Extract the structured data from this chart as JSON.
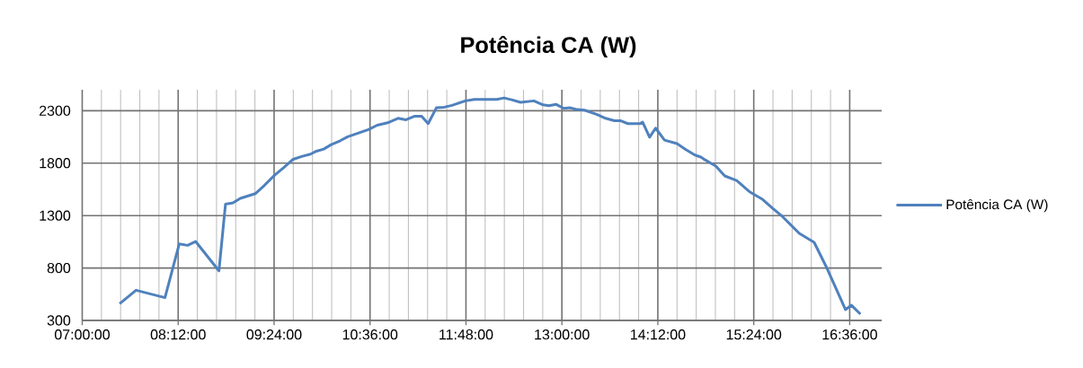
{
  "chart_data": {
    "type": "line",
    "title": "Potência CA (W)",
    "x": [
      7.468,
      7.673,
      8.035,
      8.214,
      8.318,
      8.418,
      8.71,
      8.792,
      8.885,
      8.978,
      9.164,
      9.276,
      9.407,
      9.519,
      9.638,
      9.743,
      9.855,
      9.929,
      10.02,
      10.115,
      10.227,
      10.32,
      10.45,
      10.58,
      10.69,
      10.82,
      10.95,
      11.05,
      11.16,
      11.245,
      11.327,
      11.43,
      11.53,
      11.625,
      11.793,
      11.905,
      12.185,
      12.277,
      12.37,
      12.483,
      12.65,
      12.763,
      12.837,
      12.93,
      13.023,
      13.105,
      13.172,
      13.284,
      13.434,
      13.546,
      13.657,
      13.73,
      13.825,
      13.974,
      14.01,
      14.097,
      14.172,
      14.284,
      14.44,
      14.552,
      14.664,
      14.738,
      14.776,
      14.925,
      15.037,
      15.186,
      15.354,
      15.503,
      15.633,
      15.764,
      15.969,
      16.155,
      16.304,
      16.547,
      16.622,
      16.734
    ],
    "series": [
      {
        "name": "Potência CA (W)",
        "color": "#4f81bd",
        "values": [
          460,
          588,
          517,
          1030,
          1016,
          1053,
          773,
          1409,
          1421,
          1464,
          1509,
          1586,
          1686,
          1757,
          1837,
          1863,
          1886,
          1914,
          1934,
          1977,
          2014,
          2051,
          2086,
          2120,
          2162,
          2185,
          2228,
          2214,
          2248,
          2248,
          2177,
          2328,
          2334,
          2351,
          2394,
          2408,
          2408,
          2422,
          2405,
          2380,
          2394,
          2356,
          2348,
          2360,
          2322,
          2328,
          2314,
          2305,
          2266,
          2228,
          2205,
          2205,
          2177,
          2177,
          2191,
          2048,
          2134,
          2020,
          1986,
          1928,
          1877,
          1858,
          1838,
          1772,
          1678,
          1635,
          1524,
          1458,
          1372,
          1287,
          1130,
          1045,
          816,
          403,
          445,
          360
        ]
      }
    ],
    "xlim": [
      7,
      17
    ],
    "ylim": [
      300,
      2500
    ],
    "xticks": [
      {
        "value": 7,
        "label": "07:00:00"
      },
      {
        "value": 8.2,
        "label": "08:12:00"
      },
      {
        "value": 9.4,
        "label": "09:24:00"
      },
      {
        "value": 10.6,
        "label": "10:36:00"
      },
      {
        "value": 11.8,
        "label": "11:48:00"
      },
      {
        "value": 13,
        "label": "13:00:00"
      },
      {
        "value": 14.2,
        "label": "14:12:00"
      },
      {
        "value": 15.4,
        "label": "15:24:00"
      },
      {
        "value": 16.6,
        "label": "16:36:00"
      }
    ],
    "yticks": [
      300,
      800,
      1300,
      1800,
      2300
    ],
    "grid": true,
    "legend": "right",
    "line_style": "solid",
    "marker": "none"
  }
}
